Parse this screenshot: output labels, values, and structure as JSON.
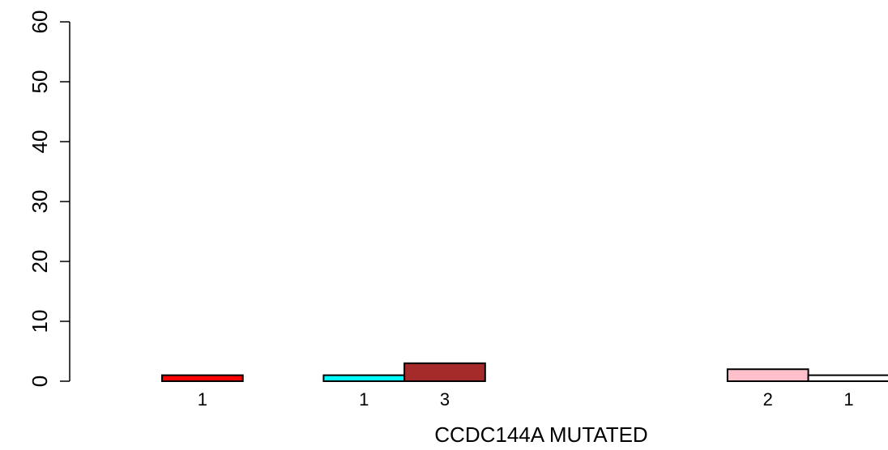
{
  "chart_data": {
    "type": "bar",
    "xlabel": "CCDC144A MUTATED",
    "ylabel": "",
    "ylim": [
      0,
      60
    ],
    "yticks": [
      0,
      10,
      20,
      30,
      40,
      50,
      60
    ],
    "grid": false,
    "bars": [
      {
        "value": 1,
        "label": "1",
        "color": "#ff0000"
      },
      {
        "value": 0,
        "label": "",
        "color": "#ffffff"
      },
      {
        "value": 1,
        "label": "1",
        "color": "#00ffff"
      },
      {
        "value": 3,
        "label": "3",
        "color": "#a52a2a"
      },
      {
        "value": 0,
        "label": "",
        "color": "#ffffff"
      },
      {
        "value": 0,
        "label": "",
        "color": "#ffffff"
      },
      {
        "value": 0,
        "label": "",
        "color": "#ffffff"
      },
      {
        "value": 2,
        "label": "2",
        "color": "#ffc0cb"
      },
      {
        "value": 1,
        "label": "1",
        "color": "#ffffff"
      }
    ]
  }
}
